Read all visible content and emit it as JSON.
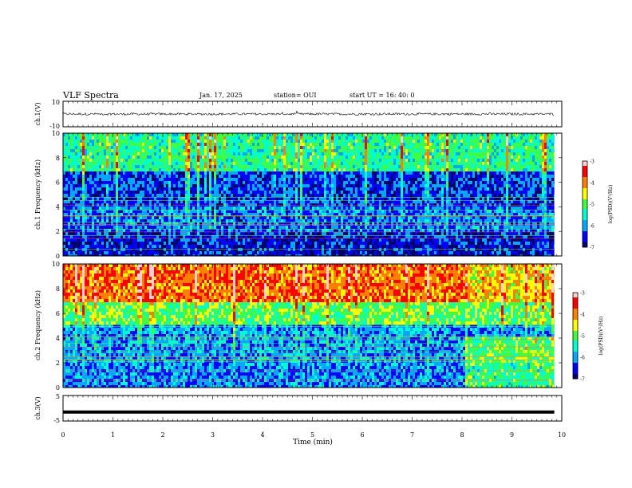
{
  "header": {
    "title": "VLF Spectra",
    "date": "Jan. 17, 2025",
    "station": "station= OUI",
    "start": "start UT = 16: 40: 0"
  },
  "colors": {
    "colormap": [
      "#000066",
      "#0000ff",
      "#00a8ff",
      "#00ffd0",
      "#40ff40",
      "#ffff00",
      "#ff8000",
      "#ff0000",
      "#ffd0d0"
    ],
    "waveform": "#000000",
    "axis": "#000000"
  },
  "chart_data": [
    {
      "type": "line",
      "panel": "ch1-waveform",
      "ylabel": "ch.1(V)",
      "ylim": [
        -10,
        10
      ],
      "yticks": [
        "10",
        "-10"
      ],
      "xlim": [
        0,
        10
      ],
      "description_level": 0,
      "series": [
        {
          "values_range": [
            -1.5,
            1.5
          ],
          "mean": 0
        }
      ]
    },
    {
      "type": "heatmap",
      "panel": "ch1-spectrogram",
      "ylabel": "ch.1  Frequency (kHz)",
      "ylim": [
        0,
        10
      ],
      "yticks": [
        "0",
        "2",
        "4",
        "6",
        "8",
        "10"
      ],
      "xlim": [
        0,
        10
      ],
      "data_end_min": 9.85,
      "colorbar": {
        "label": "log(PSD)(V²/Hz)",
        "ticks": [
          "-3",
          "-4",
          "-5",
          "-6",
          "-7"
        ],
        "range": [
          -7,
          -3
        ]
      },
      "bands": [
        {
          "f_low": 0,
          "f_high": 2,
          "level": -6.6
        },
        {
          "f_low": 2,
          "f_high": 4,
          "level": -6.2
        },
        {
          "f_low": 4,
          "f_high": 7,
          "level": -6.4
        },
        {
          "f_low": 7,
          "f_high": 10,
          "level": -5.3
        }
      ]
    },
    {
      "type": "heatmap",
      "panel": "ch2-spectrogram",
      "ylabel": "ch.2  Frequency (kHz)",
      "ylim": [
        0,
        10
      ],
      "yticks": [
        "0",
        "2",
        "4",
        "6",
        "8",
        "10"
      ],
      "xlim": [
        0,
        10
      ],
      "data_end_min": 9.85,
      "change_at_min": 8.05,
      "colorbar": {
        "label": "log(PSD)(V²/Hz)",
        "ticks": [
          "-3",
          "-4",
          "-5",
          "-6",
          "-7"
        ],
        "range": [
          -7,
          -3
        ]
      },
      "bands": [
        {
          "f_low": 0,
          "f_high": 2,
          "level": -6.1
        },
        {
          "f_low": 2,
          "f_high": 5,
          "level": -6.0
        },
        {
          "f_low": 5,
          "f_high": 7,
          "level": -5.0
        },
        {
          "f_low": 7,
          "f_high": 10,
          "level": -3.9
        }
      ]
    },
    {
      "type": "line",
      "panel": "ch3-waveform",
      "ylabel": "ch.3(V)",
      "ylim": [
        -5,
        5
      ],
      "yticks": [
        "5",
        "-5"
      ],
      "xlim": [
        0,
        10
      ],
      "series": [
        {
          "constant": -1.5
        }
      ]
    }
  ],
  "xaxis": {
    "label": "Time (min)",
    "ticks": [
      "0",
      "1",
      "2",
      "3",
      "4",
      "5",
      "6",
      "7",
      "8",
      "9",
      "10"
    ]
  }
}
